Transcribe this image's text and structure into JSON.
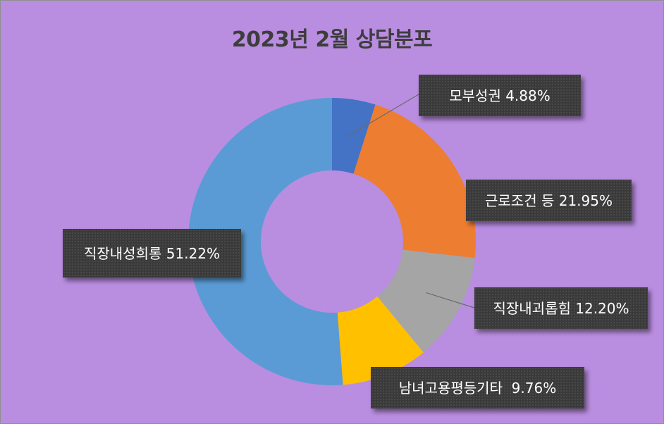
{
  "chart_data": {
    "type": "pie",
    "title": "2023년 2월 상담분포",
    "donut": true,
    "slices": [
      {
        "category": "모부성권",
        "value": 4.88,
        "label": "모부성권 4.88%",
        "color": "#4472c4"
      },
      {
        "category": "근로조건 등",
        "value": 21.95,
        "label": "근로조건 등 21.95%",
        "color": "#ed7d31"
      },
      {
        "category": "직장내괴롭힘",
        "value": 12.2,
        "label": "직장내괴롭힘 12.20%",
        "color": "#a5a5a5"
      },
      {
        "category": "남녀고용평등기타",
        "value": 9.76,
        "label": "남녀고용평등기타  9.76%",
        "color": "#ffc000"
      },
      {
        "category": "직장내성희롱",
        "value": 51.22,
        "label": "직장내성희롱 51.22%",
        "color": "#5b9bd5"
      }
    ],
    "legend": "none",
    "background_color": "#b98de0"
  }
}
